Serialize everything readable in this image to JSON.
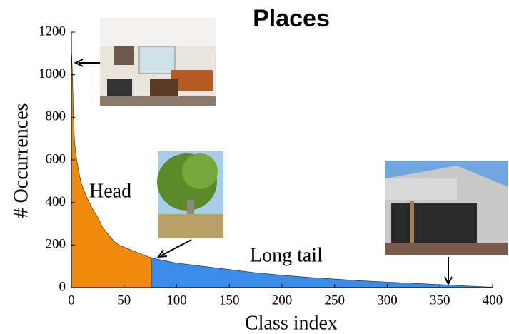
{
  "chart_data": {
    "type": "area",
    "title": "Places",
    "x_label": "Class index",
    "y_label": "# Occurrences",
    "xlim": [
      0,
      400
    ],
    "xticks": [
      0,
      50,
      100,
      150,
      200,
      250,
      300,
      350,
      400
    ],
    "ylim": [
      0,
      1200
    ],
    "yticks": [
      0,
      200,
      400,
      600,
      800,
      1000,
      1200
    ],
    "grid": false,
    "series": [
      {
        "name": "Head",
        "color": "#f08a0c",
        "x": [
          0,
          1,
          2,
          3,
          5,
          8,
          10,
          15,
          20,
          25,
          30,
          35,
          40,
          45,
          50,
          55,
          60,
          65,
          70,
          76
        ],
        "values": [
          1130,
          1000,
          800,
          680,
          600,
          520,
          480,
          420,
          370,
          330,
          280,
          250,
          220,
          200,
          190,
          180,
          170,
          160,
          150,
          140
        ]
      },
      {
        "name": "Long tail",
        "color": "#3b8be8",
        "x": [
          76,
          80,
          100,
          125,
          150,
          175,
          200,
          225,
          250,
          275,
          300,
          325,
          350,
          375,
          400
        ],
        "values": [
          140,
          135,
          115,
          100,
          85,
          70,
          58,
          48,
          40,
          32,
          26,
          20,
          14,
          8,
          2
        ]
      }
    ]
  }
}
